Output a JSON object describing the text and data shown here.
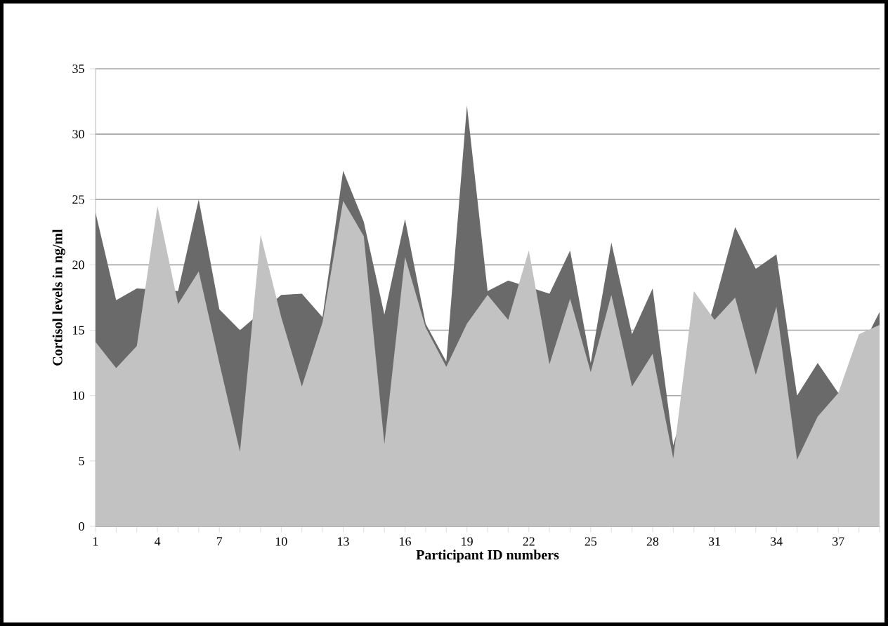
{
  "chart_data": {
    "type": "area",
    "xlabel": "Participant ID numbers",
    "ylabel": "Cortisol levels in ng/ml",
    "categories": [
      "1",
      null,
      null,
      "4",
      null,
      null,
      "7",
      null,
      null,
      "10",
      null,
      null,
      "13",
      null,
      null,
      "16",
      null,
      null,
      "19",
      null,
      null,
      "22",
      null,
      null,
      "25",
      null,
      null,
      "28",
      null,
      null,
      "31",
      null,
      null,
      "34",
      null,
      null,
      "37",
      null,
      null
    ],
    "series": [
      {
        "color": "#6a6a6a",
        "values": [
          24,
          17.3,
          18.2,
          null,
          18,
          25,
          16.6,
          15,
          null,
          17.7,
          17.8,
          16,
          27.2,
          23.3,
          16.2,
          23.5,
          15.5,
          12.6,
          32.2,
          18,
          18.8,
          null,
          17.8,
          21.1,
          12.5,
          21.7,
          14.7,
          18.2,
          6.2,
          null,
          17.1,
          22.9,
          19.7,
          20.8,
          10,
          12.5,
          10.2,
          null,
          16.4
        ]
      },
      {
        "color": "#c2c2c2",
        "values": [
          14.1,
          12.1,
          13.8,
          24.5,
          17,
          19.5,
          12.5,
          5.7,
          22.3,
          16,
          10.7,
          15.6,
          24.9,
          22.2,
          6.3,
          20.6,
          15.2,
          12.2,
          15.5,
          17.7,
          15.8,
          21.1,
          12.4,
          17.4,
          11.8,
          17.7,
          10.7,
          13.2,
          5.2,
          18,
          15.8,
          17.5,
          11.6,
          16.8,
          5.1,
          8.4,
          10.2,
          14.7,
          15.4
        ]
      }
    ],
    "ylim": [
      0,
      35
    ],
    "yticks": [
      0,
      5,
      10,
      15,
      20,
      25,
      30,
      35
    ],
    "grid": "y"
  }
}
